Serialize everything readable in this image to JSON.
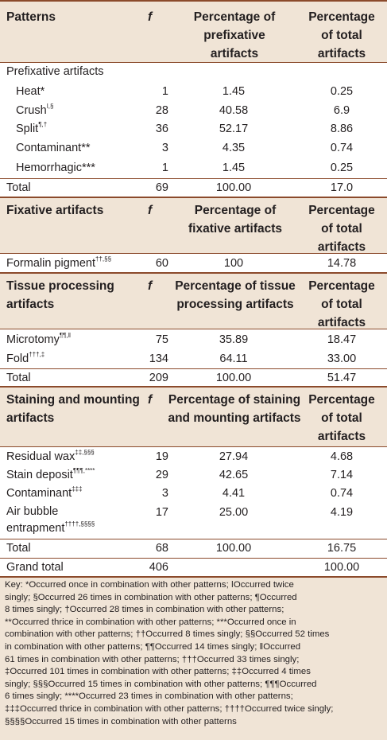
{
  "sections": [
    {
      "id": "prefixative",
      "header": {
        "label": "Patterns",
        "f": "f",
        "pct": "Percentage of prefixative artifacts",
        "total": "Percentage of total artifacts"
      },
      "subheading": "Prefixative artifacts",
      "rows": [
        {
          "label": "Heat*",
          "sup": "",
          "f": "1",
          "pct": "1.45",
          "total": "0.25"
        },
        {
          "label": "Crush",
          "sup": "ǀ,§",
          "f": "28",
          "pct": "40.58",
          "total": "6.9"
        },
        {
          "label": "Split",
          "sup": "¶,†",
          "f": "36",
          "pct": "52.17",
          "total": "8.86"
        },
        {
          "label": "Contaminant**",
          "sup": "",
          "f": "3",
          "pct": "4.35",
          "total": "0.74"
        },
        {
          "label": "Hemorrhagic***",
          "sup": "",
          "f": "1",
          "pct": "1.45",
          "total": "0.25"
        }
      ],
      "total": {
        "label": "Total",
        "f": "69",
        "pct": "100.00",
        "total": "17.0"
      }
    },
    {
      "id": "fixative",
      "header": {
        "label": "Fixative artifacts",
        "f": "f",
        "pct": "Percentage of fixative artifacts",
        "total": "Percentage of total artifacts"
      },
      "rows": [
        {
          "label": "Formalin pigment",
          "sup": "††,§§",
          "f": "60",
          "pct": "100",
          "total": "14.78"
        }
      ]
    },
    {
      "id": "processing",
      "header": {
        "label": "Tissue processing artifacts",
        "f": "f",
        "pct": "Percentage of tissue processing artifacts",
        "total": "Percentage of total artifacts"
      },
      "rows": [
        {
          "label": "Microtomy",
          "sup": "¶¶,ǁ",
          "f": "75",
          "pct": "35.89",
          "total": "18.47"
        },
        {
          "label": "Fold",
          "sup": "†††,‡",
          "f": "134",
          "pct": "64.11",
          "total": "33.00"
        }
      ],
      "total": {
        "label": "Total",
        "f": "209",
        "pct": "100.00",
        "total": "51.47"
      }
    },
    {
      "id": "staining",
      "header": {
        "label": "Staining and mounting artifacts",
        "f": "f",
        "pct": "Percentage of staining and mounting artifacts",
        "total": "Percentage of total artifacts"
      },
      "rows": [
        {
          "label": "Residual wax",
          "sup": "‡‡,§§§",
          "f": "19",
          "pct": "27.94",
          "total": "4.68"
        },
        {
          "label": "Stain deposit",
          "sup": "¶¶¶,****",
          "f": "29",
          "pct": "42.65",
          "total": "7.14"
        },
        {
          "label": "Contaminant",
          "sup": "‡‡‡",
          "f": "3",
          "pct": "4.41",
          "total": "0.74"
        },
        {
          "label": "Air bubble entrapment",
          "sup": "††††,§§§§",
          "f": "17",
          "pct": "25.00",
          "total": "4.19"
        }
      ],
      "total": {
        "label": "Total",
        "f": "68",
        "pct": "100.00",
        "total": "16.75"
      }
    }
  ],
  "grand_total": {
    "label": "Grand total",
    "f": "406",
    "total": "100.00"
  },
  "key_lines": [
    "Key: *Occurred once in combination with other patterns; ǀOccurred twice",
    "singly; §Occurred 26 times in combination with other patterns; ¶Occurred",
    "8 times singly; †Occurred 28 times in combination with other patterns;",
    "**Occurred thrice in combination with other patterns; ***Occurred once in",
    "combination with other patterns; ††Occurred 8 times singly; §§Occurred 52 times",
    "in combination with other patterns; ¶¶Occurred 14 times singly; ǁOccurred",
    "61 times in combination with other patterns; †††Occurred 33 times singly;",
    "‡Occurred 101 times in combination with other patterns; ‡‡Occurred 4 times",
    "singly; §§§Occurred 15 times in combination with other patterns; ¶¶¶Occurred",
    "6 times singly; ****Occurred 23 times in combination with other patterns;",
    "‡‡‡Occurred thrice in combination with other patterns; ††††Occurred twice singly;",
    "§§§§Occurred 15 times in combination with other patterns"
  ]
}
